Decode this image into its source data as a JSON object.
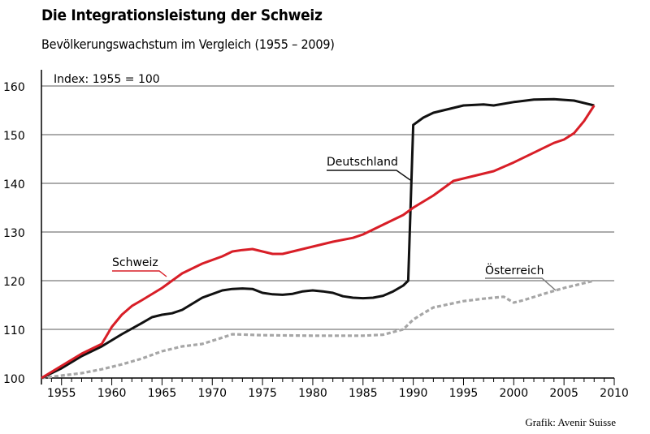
{
  "chart_data": {
    "type": "line",
    "title": "Die Integrationsleistung der Schweiz",
    "subtitle": "Bevölkerungswachstum im Vergleich (1955 – 2009)",
    "note": "Index: 1955 = 100",
    "credit": "Grafik: Avenir Suisse",
    "xlim": [
      1953,
      2010
    ],
    "ylim": [
      100,
      160
    ],
    "x_ticks": [
      1955,
      1960,
      1965,
      1970,
      1975,
      1980,
      1985,
      1990,
      1995,
      2000,
      2005,
      2010
    ],
    "y_ticks": [
      100,
      110,
      120,
      130,
      140,
      150,
      160
    ],
    "grid": "horizontal",
    "series": [
      {
        "name": "Schweiz",
        "color": "#d81e27",
        "style": "solid",
        "x": [
          1953,
          1955,
          1957,
          1959,
          1960,
          1961,
          1962,
          1963,
          1965,
          1967,
          1969,
          1971,
          1972,
          1973,
          1974,
          1975,
          1976,
          1977,
          1978,
          1980,
          1982,
          1984,
          1985,
          1987,
          1989,
          1990,
          1992,
          1994,
          1996,
          1998,
          2000,
          2001,
          2002,
          2003,
          2004,
          2005,
          2006,
          2007,
          2008
        ],
        "values": [
          100,
          102.5,
          105,
          107,
          110.5,
          113,
          114.8,
          116,
          118.5,
          121.5,
          123.5,
          125,
          126,
          126.3,
          126.5,
          126,
          125.5,
          125.5,
          126,
          127,
          128,
          128.8,
          129.5,
          131.5,
          133.5,
          135,
          137.5,
          140.5,
          141.5,
          142.5,
          144.3,
          145.3,
          146.3,
          147.3,
          148.3,
          149,
          150.3,
          152.8,
          156
        ]
      },
      {
        "name": "Deutschland",
        "color": "#111111",
        "style": "solid",
        "x": [
          1953,
          1955,
          1957,
          1959,
          1961,
          1963,
          1964,
          1965,
          1966,
          1967,
          1969,
          1971,
          1972,
          1973,
          1974,
          1975,
          1976,
          1977,
          1978,
          1979,
          1980,
          1981,
          1982,
          1983,
          1984,
          1985,
          1986,
          1987,
          1988,
          1989,
          1989.5,
          1990,
          1991,
          1992,
          1993,
          1995,
          1997,
          1998,
          2000,
          2002,
          2004,
          2006,
          2008
        ],
        "values": [
          100,
          102,
          104.5,
          106.5,
          109,
          111.3,
          112.5,
          113,
          113.3,
          114,
          116.5,
          118,
          118.3,
          118.4,
          118.3,
          117.5,
          117.2,
          117.1,
          117.3,
          117.8,
          118,
          117.8,
          117.5,
          116.8,
          116.5,
          116.4,
          116.5,
          116.9,
          117.8,
          119,
          120,
          152,
          153.5,
          154.5,
          155,
          156,
          156.2,
          156,
          156.7,
          157.2,
          157.3,
          157,
          156
        ]
      },
      {
        "name": "Österreich",
        "color": "#a6a6a6",
        "style": "dashed",
        "x": [
          1953,
          1955,
          1957,
          1959,
          1961,
          1963,
          1965,
          1967,
          1969,
          1971,
          1972,
          1975,
          1980,
          1985,
          1987,
          1989,
          1990,
          1991,
          1992,
          1995,
          1997,
          1999,
          2000,
          2001,
          2003,
          2005,
          2007,
          2008
        ],
        "values": [
          100,
          100.5,
          101,
          101.8,
          102.8,
          104,
          105.5,
          106.5,
          107,
          108.3,
          109,
          108.8,
          108.7,
          108.7,
          108.9,
          110,
          112,
          113.3,
          114.5,
          115.8,
          116.3,
          116.7,
          115.5,
          116,
          117.3,
          118.5,
          119.5,
          120
        ]
      }
    ]
  }
}
